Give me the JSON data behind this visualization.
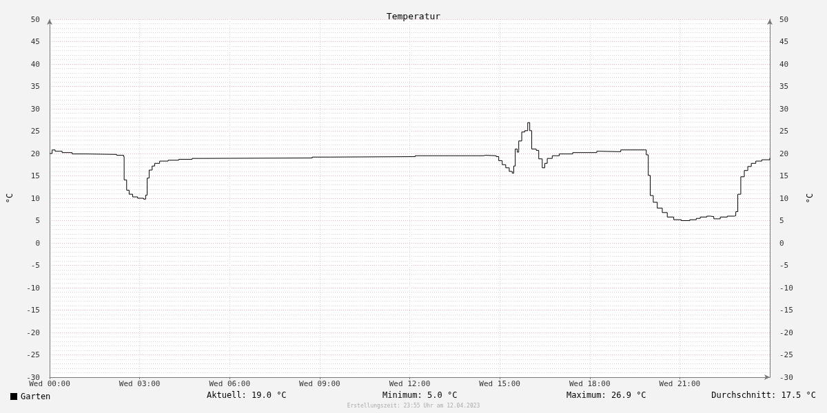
{
  "chart_data": {
    "type": "step",
    "title": "Temperatur",
    "ylabel": "°C",
    "y2label": "°C",
    "x": [
      "2023-04-12T00:00",
      "2023-04-12T00:05",
      "2023-04-12T00:11",
      "2023-04-12T00:25",
      "2023-04-12T00:45",
      "2023-04-12T01:13",
      "2023-04-12T02:14",
      "2023-04-12T02:28",
      "2023-04-12T02:29",
      "2023-04-12T02:34",
      "2023-04-12T02:39",
      "2023-04-12T02:46",
      "2023-04-12T02:56",
      "2023-04-12T03:08",
      "2023-04-12T03:12",
      "2023-04-12T03:15",
      "2023-04-12T03:19",
      "2023-04-12T03:25",
      "2023-04-12T03:30",
      "2023-04-12T03:40",
      "2023-04-12T03:57",
      "2023-04-12T04:18",
      "2023-04-12T04:45",
      "2023-04-12T05:06",
      "2023-04-12T08:45",
      "2023-04-12T09:20",
      "2023-04-12T12:11",
      "2023-04-12T14:28",
      "2023-04-12T14:31",
      "2023-04-12T14:53",
      "2023-04-12T14:58",
      "2023-04-12T15:05",
      "2023-04-12T15:12",
      "2023-04-12T15:19",
      "2023-04-12T15:25",
      "2023-04-12T15:28",
      "2023-04-12T15:31",
      "2023-04-12T15:35",
      "2023-04-12T15:38",
      "2023-04-12T15:44",
      "2023-04-12T15:50",
      "2023-04-12T15:56",
      "2023-04-12T16:00",
      "2023-04-12T16:04",
      "2023-04-12T16:13",
      "2023-04-12T16:18",
      "2023-04-12T16:25",
      "2023-04-12T16:30",
      "2023-04-12T16:35",
      "2023-04-12T16:45",
      "2023-04-12T16:59",
      "2023-04-12T17:26",
      "2023-04-12T18:14",
      "2023-04-12T18:21",
      "2023-04-12T19:02",
      "2023-04-12T19:50",
      "2023-04-12T19:53",
      "2023-04-12T19:57",
      "2023-04-12T20:01",
      "2023-04-12T20:07",
      "2023-04-12T20:15",
      "2023-04-12T20:25",
      "2023-04-12T20:35",
      "2023-04-12T20:48",
      "2023-04-12T21:03",
      "2023-04-12T21:20",
      "2023-04-12T21:33",
      "2023-04-12T21:41",
      "2023-04-12T21:54",
      "2023-04-12T22:01",
      "2023-04-12T22:08",
      "2023-04-12T22:14",
      "2023-04-12T22:21",
      "2023-04-12T22:35",
      "2023-04-12T22:49",
      "2023-04-12T22:52",
      "2023-04-12T22:56",
      "2023-04-12T23:02",
      "2023-04-12T23:09",
      "2023-04-12T23:16",
      "2023-04-12T23:23",
      "2023-04-12T23:32",
      "2023-04-12T23:44",
      "2023-04-13T00:00"
    ],
    "series": [
      {
        "name": "Garten",
        "color": "#000000",
        "values": [
          20.0,
          20.8,
          20.5,
          20.2,
          19.9,
          19.8,
          19.6,
          19.3,
          14.1,
          11.8,
          10.9,
          10.3,
          10.0,
          9.8,
          10.7,
          14.5,
          16.3,
          17.2,
          17.8,
          18.3,
          18.5,
          18.7,
          18.9,
          19.0,
          19.2,
          19.3,
          19.5,
          19.6,
          19.5,
          19.3,
          18.4,
          17.5,
          16.8,
          16.0,
          15.6,
          17.2,
          21.0,
          20.3,
          22.8,
          24.8,
          25.1,
          26.9,
          25.1,
          21.0,
          20.7,
          18.8,
          16.8,
          17.8,
          18.9,
          19.5,
          19.9,
          20.2,
          20.5,
          20.4,
          20.8,
          20.8,
          19.7,
          15.1,
          10.6,
          9.1,
          7.8,
          6.8,
          5.8,
          5.2,
          5.0,
          5.2,
          5.5,
          5.8,
          6.0,
          5.9,
          5.4,
          5.4,
          5.8,
          6.0,
          6.1,
          7.0,
          10.9,
          14.8,
          16.2,
          17.1,
          17.8,
          18.3,
          18.6,
          19.0
        ]
      }
    ],
    "xlim": [
      "2023-04-12T00:00",
      "2023-04-13T00:00"
    ],
    "xticks": [
      {
        "value": "2023-04-12T00:00",
        "label": "Wed 00:00"
      },
      {
        "value": "2023-04-12T03:00",
        "label": "Wed 03:00"
      },
      {
        "value": "2023-04-12T06:00",
        "label": "Wed 06:00"
      },
      {
        "value": "2023-04-12T09:00",
        "label": "Wed 09:00"
      },
      {
        "value": "2023-04-12T12:00",
        "label": "Wed 12:00"
      },
      {
        "value": "2023-04-12T15:00",
        "label": "Wed 15:00"
      },
      {
        "value": "2023-04-12T18:00",
        "label": "Wed 18:00"
      },
      {
        "value": "2023-04-12T21:00",
        "label": "Wed 21:00"
      }
    ],
    "ylim": [
      -30,
      50
    ],
    "yticks": [
      -30,
      -25,
      -20,
      -15,
      -10,
      -5,
      0,
      5,
      10,
      15,
      20,
      25,
      30,
      35,
      40,
      45,
      50
    ],
    "y2lim": [
      -30,
      50
    ],
    "y2ticks": [
      -30,
      -25,
      -20,
      -15,
      -10,
      -5,
      0,
      5,
      10,
      15,
      20,
      25,
      30,
      35,
      40,
      45,
      50
    ],
    "grid": true,
    "legend": "bottom left",
    "marker": "none",
    "line_style": "solid",
    "annotations": [
      "Aktuell: 19.0 °C",
      "Minimum: 5.0 °C",
      "Maximum: 26.9 °C",
      "Durchschnitt: 17.5 °C",
      "Erstellungszeit: 23:55 Uhr am 12.04.2023"
    ]
  }
}
